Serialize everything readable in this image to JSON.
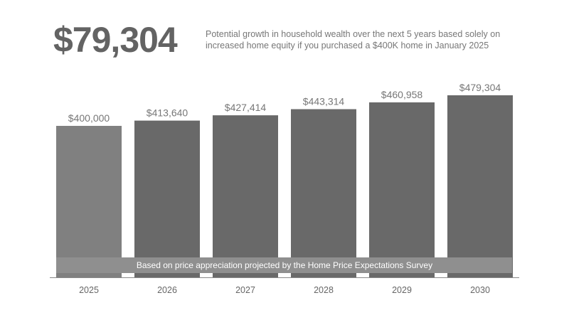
{
  "header": {
    "total_gain": "$79,304",
    "description": "Potential growth in household wealth over the next 5 years based solely on increased home equity if you purchased a $400K home in January 2025"
  },
  "chart_data": {
    "type": "bar",
    "title": "",
    "xlabel": "",
    "ylabel": "",
    "categories": [
      "2025",
      "2026",
      "2027",
      "2028",
      "2029",
      "2030"
    ],
    "values": [
      400000,
      413640,
      427414,
      443314,
      460958,
      479304
    ],
    "value_labels": [
      "$400,000",
      "$413,640",
      "$427,414",
      "$443,314",
      "$460,958",
      "$479,304"
    ],
    "grid": false,
    "legend": "none",
    "annotation": "Based on price appreciation projected by the Home Price Expectations Survey",
    "colors": {
      "first_bar": "#808080",
      "bars": "#696969",
      "annotation_band": "#8f8f8f",
      "baseline": "#888888"
    }
  }
}
